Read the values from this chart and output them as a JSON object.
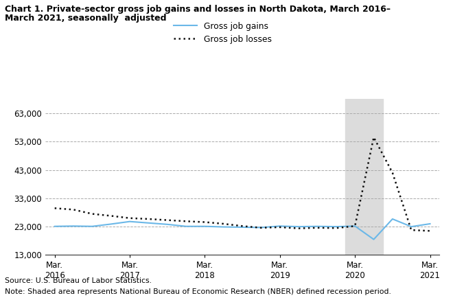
{
  "title_line1": "Chart 1. Private-sector gross job gains and losses in North Dakota, March 2016–",
  "title_line2": "March 2021, seasonally  adjusted",
  "source": "Source: U.S. Bureau of Labor Statistics.",
  "note": "Note: Shaded area represents National Bureau of Economic Research (NBER) defined recession period.",
  "legend_gains": "Gross job gains",
  "legend_losses": "Gross job losses",
  "gains_color": "#6BB8E8",
  "losses_color": "#111111",
  "shaded_color": "#DCDCDC",
  "background_color": "#FFFFFF",
  "ylim": [
    13000,
    68000
  ],
  "yticks": [
    13000,
    23000,
    33000,
    43000,
    53000,
    63000
  ],
  "ytick_labels": [
    "13,000",
    "23,000",
    "33,000",
    "43,000",
    "53,000",
    "63,000"
  ],
  "x_tick_positions": [
    0,
    4,
    8,
    12,
    16,
    20
  ],
  "x_tick_labels": [
    "Mar.\n2016",
    "Mar.\n2017",
    "Mar.\n2018",
    "Mar.\n2019",
    "Mar.\n2020",
    "Mar.\n2021"
  ],
  "gains": [
    23100,
    23200,
    23100,
    23900,
    24800,
    24300,
    23800,
    23100,
    23100,
    22900,
    22800,
    22700,
    23200,
    23000,
    23100,
    23000,
    23200,
    18500,
    25700,
    23000,
    24000
  ],
  "losses": [
    29500,
    29000,
    27500,
    26800,
    26000,
    25700,
    25300,
    24900,
    24600,
    24000,
    23200,
    22600,
    22800,
    22400,
    22600,
    22500,
    23200,
    54500,
    42000,
    21800,
    21500
  ],
  "recession_xstart": 15.5,
  "recession_xend": 17.5
}
